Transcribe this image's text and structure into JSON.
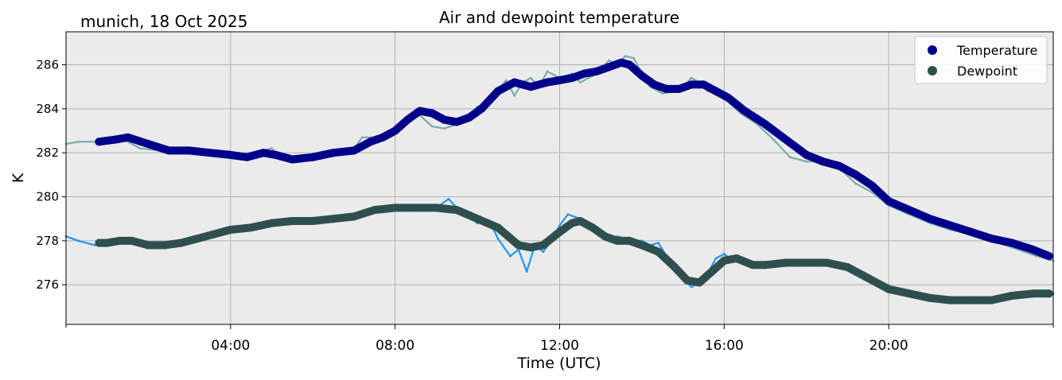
{
  "chart_data": {
    "type": "line",
    "title": "Air and dewpoint temperature",
    "subtitle": "munich, 18 Oct 2025",
    "xlabel": "Time (UTC)",
    "ylabel": "K",
    "x_unit": "hours since 00:00 UTC",
    "xlim": [
      0,
      24
    ],
    "ylim": [
      274.2,
      287.5
    ],
    "x_ticks": [
      {
        "value": 4,
        "label": "04:00"
      },
      {
        "value": 8,
        "label": "08:00"
      },
      {
        "value": 12,
        "label": "12:00"
      },
      {
        "value": 16,
        "label": "16:00"
      },
      {
        "value": 20,
        "label": "20:00"
      }
    ],
    "x_minor_ticks": [
      0,
      24
    ],
    "y_ticks": [
      {
        "value": 276,
        "label": "276"
      },
      {
        "value": 278,
        "label": "278"
      },
      {
        "value": 280,
        "label": "280"
      },
      {
        "value": 282,
        "label": "282"
      },
      {
        "value": 284,
        "label": "284"
      },
      {
        "value": 286,
        "label": "286"
      }
    ],
    "grid": true,
    "legend_position": "top-right",
    "series": [
      {
        "name": "Temperature",
        "style": "raw",
        "color": "#7aacad",
        "x": [
          0.0,
          0.3,
          0.8,
          1.3,
          1.8,
          2.3,
          3.0,
          3.7,
          4.2,
          4.5,
          4.8,
          5.0,
          5.3,
          5.7,
          6.2,
          6.7,
          7.0,
          7.2,
          7.5,
          7.8,
          8.0,
          8.3,
          8.6,
          8.9,
          9.2,
          9.5,
          9.8,
          10.0,
          10.2,
          10.5,
          10.7,
          10.9,
          11.1,
          11.3,
          11.5,
          11.7,
          12.0,
          12.3,
          12.5,
          12.8,
          13.0,
          13.2,
          13.4,
          13.6,
          13.8,
          14.0,
          14.2,
          14.5,
          14.8,
          15.0,
          15.2,
          15.4,
          15.6,
          15.8,
          16.0,
          16.4,
          16.8,
          17.2,
          17.6,
          18.0,
          18.4,
          18.8,
          19.2,
          19.6,
          20.0,
          20.5,
          21.0,
          21.5,
          22.0,
          22.5,
          23.0,
          23.3,
          23.6,
          24.0
        ],
        "values": [
          282.4,
          282.5,
          282.5,
          282.7,
          282.2,
          282.1,
          282.0,
          282.0,
          281.8,
          281.8,
          282.1,
          282.2,
          281.7,
          281.7,
          281.8,
          282.0,
          282.2,
          282.7,
          282.7,
          282.7,
          283.2,
          283.6,
          283.7,
          283.2,
          283.1,
          283.3,
          283.7,
          284.1,
          284.2,
          284.8,
          285.3,
          284.6,
          285.2,
          285.4,
          285.0,
          285.7,
          285.4,
          285.6,
          285.2,
          285.5,
          285.8,
          286.2,
          286.0,
          286.4,
          286.3,
          285.6,
          285.0,
          284.7,
          284.8,
          285.0,
          285.4,
          285.2,
          284.8,
          284.8,
          284.5,
          283.8,
          283.3,
          282.6,
          281.8,
          281.6,
          281.6,
          281.3,
          280.6,
          280.2,
          279.6,
          279.2,
          278.8,
          278.5,
          278.3,
          278.0,
          277.7,
          277.5,
          277.3,
          277.1
        ]
      },
      {
        "name": "Dewpoint",
        "style": "raw",
        "color": "#2196f0",
        "x": [
          0.0,
          0.3,
          0.7,
          1.0,
          1.3,
          1.7,
          2.0,
          2.4,
          2.8,
          3.3,
          3.8,
          4.3,
          4.8,
          5.3,
          5.8,
          6.3,
          6.8,
          7.3,
          7.8,
          8.3,
          8.7,
          9.0,
          9.3,
          9.6,
          9.8,
          10.0,
          10.3,
          10.5,
          10.8,
          11.0,
          11.2,
          11.4,
          11.6,
          11.8,
          12.0,
          12.2,
          12.5,
          12.7,
          13.0,
          13.2,
          13.4,
          13.6,
          13.8,
          14.0,
          14.2,
          14.4,
          14.6,
          14.8,
          15.0,
          15.2,
          15.5,
          15.8,
          16.0,
          16.2,
          16.5,
          17.0,
          17.5,
          18.0,
          18.5,
          19.0,
          19.4,
          19.7,
          20.0,
          20.5,
          21.0,
          21.5,
          22.0,
          22.5,
          23.0,
          23.5,
          24.0
        ],
        "values": [
          278.2,
          278.0,
          277.8,
          278.0,
          278.0,
          278.0,
          277.8,
          277.8,
          278.0,
          278.1,
          278.4,
          278.6,
          278.7,
          278.9,
          278.9,
          279.0,
          279.0,
          279.2,
          279.5,
          279.6,
          279.5,
          279.5,
          279.9,
          279.3,
          279.1,
          278.8,
          278.9,
          278.1,
          277.3,
          277.6,
          276.6,
          277.8,
          277.5,
          278.0,
          278.7,
          279.2,
          279.0,
          278.6,
          278.3,
          278.0,
          278.2,
          278.1,
          278.0,
          278.0,
          277.8,
          277.9,
          277.3,
          276.9,
          276.3,
          275.9,
          276.2,
          277.2,
          277.4,
          277.1,
          277.0,
          276.9,
          277.0,
          277.1,
          277.0,
          276.8,
          276.5,
          276.1,
          275.8,
          275.5,
          275.4,
          275.3,
          275.3,
          275.3,
          275.5,
          275.6,
          275.6
        ]
      },
      {
        "name": "Temperature",
        "style": "smoothed",
        "color": "#00008b",
        "x": [
          0.8,
          1.2,
          1.5,
          2.0,
          2.5,
          3.0,
          3.5,
          4.0,
          4.4,
          4.8,
          5.1,
          5.5,
          6.0,
          6.5,
          7.0,
          7.4,
          7.7,
          8.0,
          8.3,
          8.6,
          8.9,
          9.2,
          9.5,
          9.8,
          10.1,
          10.5,
          10.9,
          11.3,
          11.7,
          12.0,
          12.3,
          12.6,
          12.9,
          13.2,
          13.5,
          13.7,
          14.0,
          14.3,
          14.6,
          14.9,
          15.2,
          15.5,
          15.8,
          16.1,
          16.5,
          17.0,
          17.5,
          18.0,
          18.4,
          18.8,
          19.2,
          19.6,
          20.0,
          20.5,
          21.0,
          21.5,
          22.0,
          22.5,
          23.0,
          23.5,
          23.9
        ],
        "values": [
          282.5,
          282.6,
          282.7,
          282.4,
          282.1,
          282.1,
          282.0,
          281.9,
          281.8,
          282.0,
          281.9,
          281.7,
          281.8,
          282.0,
          282.1,
          282.5,
          282.7,
          283.0,
          283.5,
          283.9,
          283.8,
          283.5,
          283.4,
          283.6,
          284.0,
          284.8,
          285.2,
          285.0,
          285.2,
          285.3,
          285.4,
          285.6,
          285.7,
          285.9,
          286.1,
          286.0,
          285.5,
          285.1,
          284.9,
          284.9,
          285.1,
          285.1,
          284.8,
          284.5,
          283.9,
          283.3,
          282.6,
          281.9,
          281.6,
          281.4,
          281.0,
          280.5,
          279.8,
          279.4,
          279.0,
          278.7,
          278.4,
          278.1,
          277.9,
          277.6,
          277.3
        ]
      },
      {
        "name": "Dewpoint",
        "style": "smoothed",
        "color": "#2f4f4f",
        "x": [
          0.8,
          1.0,
          1.3,
          1.6,
          2.0,
          2.4,
          2.8,
          3.2,
          3.6,
          4.0,
          4.5,
          5.0,
          5.5,
          6.0,
          6.5,
          7.0,
          7.5,
          8.0,
          8.5,
          9.0,
          9.5,
          10.0,
          10.5,
          11.0,
          11.3,
          11.6,
          12.0,
          12.3,
          12.5,
          12.8,
          13.1,
          13.4,
          13.7,
          14.0,
          14.4,
          14.8,
          15.1,
          15.4,
          15.7,
          16.0,
          16.3,
          16.7,
          17.0,
          17.5,
          18.0,
          18.5,
          19.0,
          19.5,
          20.0,
          20.5,
          21.0,
          21.5,
          22.0,
          22.5,
          23.0,
          23.5,
          23.9
        ],
        "values": [
          277.9,
          277.9,
          278.0,
          278.0,
          277.8,
          277.8,
          277.9,
          278.1,
          278.3,
          278.5,
          278.6,
          278.8,
          278.9,
          278.9,
          279.0,
          279.1,
          279.4,
          279.5,
          279.5,
          279.5,
          279.4,
          279.0,
          278.6,
          277.8,
          277.7,
          277.8,
          278.4,
          278.8,
          278.9,
          278.6,
          278.2,
          278.0,
          278.0,
          277.8,
          277.5,
          276.8,
          276.2,
          276.1,
          276.6,
          277.1,
          277.2,
          276.9,
          276.9,
          277.0,
          277.0,
          277.0,
          276.8,
          276.3,
          275.8,
          275.6,
          275.4,
          275.3,
          275.3,
          275.3,
          275.5,
          275.6,
          275.6
        ]
      }
    ],
    "legend": [
      {
        "label": "Temperature",
        "color": "#00008b"
      },
      {
        "label": "Dewpoint",
        "color": "#2f4f4f"
      }
    ],
    "colors": {
      "plot_background": "#ebebeb",
      "grid": "#b0b0b0"
    }
  }
}
